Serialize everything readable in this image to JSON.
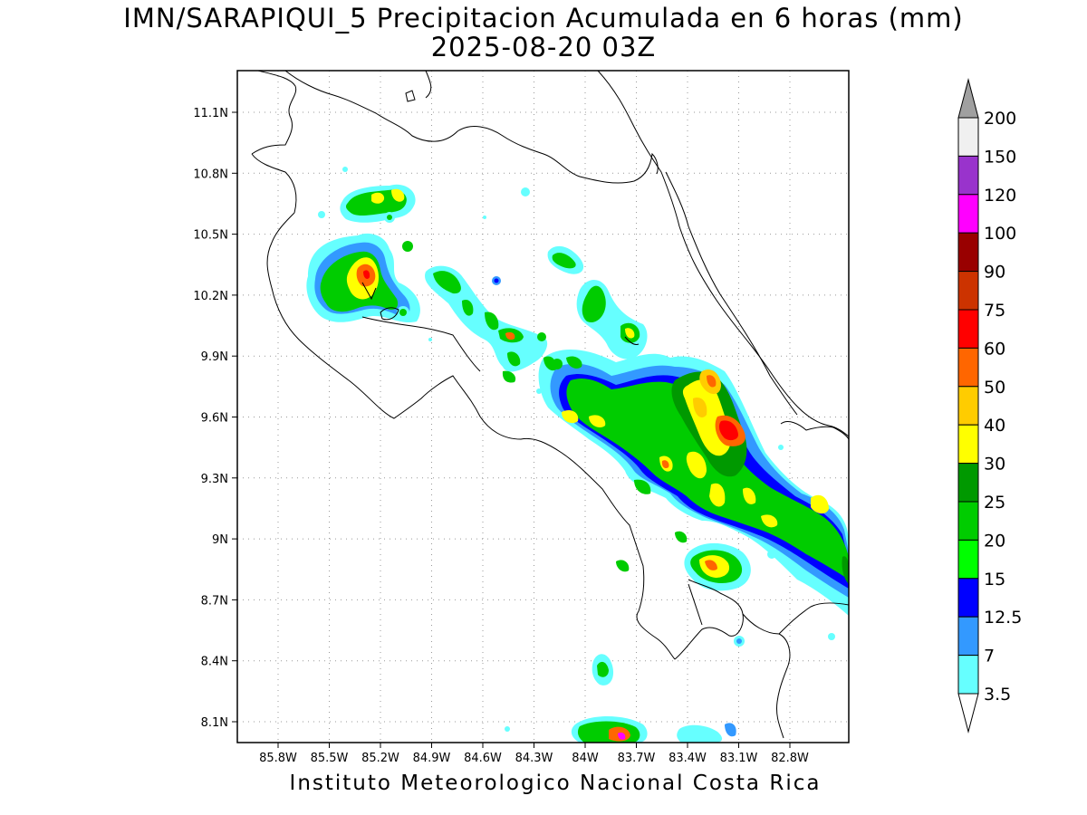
{
  "map": {
    "title_line1": "IMN/SARAPIQUI_5 Precipitacion Acumulada en 6 horas (mm)",
    "title_line2": "2025-08-20 03Z",
    "credit": "Instituto Meteorologico Nacional Costa Rica",
    "lon_ticks": [
      "85.8W",
      "85.5W",
      "85.2W",
      "84.9W",
      "84.6W",
      "84.3W",
      "84W",
      "83.7W",
      "83.4W",
      "83.1W",
      "82.8W"
    ],
    "lat_ticks": [
      "11.1N",
      "10.8N",
      "10.5N",
      "10.2N",
      "9.9N",
      "9.6N",
      "9.3N",
      "9N",
      "8.7N",
      "8.4N",
      "8.1N"
    ],
    "land_color": "#ffffff",
    "coast_color": "#000000",
    "gridline_style": "dotted"
  },
  "legend": {
    "levels": [
      "200",
      "150",
      "120",
      "100",
      "90",
      "75",
      "60",
      "50",
      "40",
      "30",
      "25",
      "20",
      "15",
      "12.5",
      "7",
      "3.5"
    ],
    "colors": [
      "#a0a0a0",
      "#f0f0f0",
      "#9933cc",
      "#ff00ff",
      "#990000",
      "#cc3300",
      "#ff0000",
      "#ff6600",
      "#ffcc00",
      "#ffff00",
      "#009900",
      "#00cc00",
      "#00ff00",
      "#0000ff",
      "#3399ff",
      "#66ffff"
    ]
  }
}
